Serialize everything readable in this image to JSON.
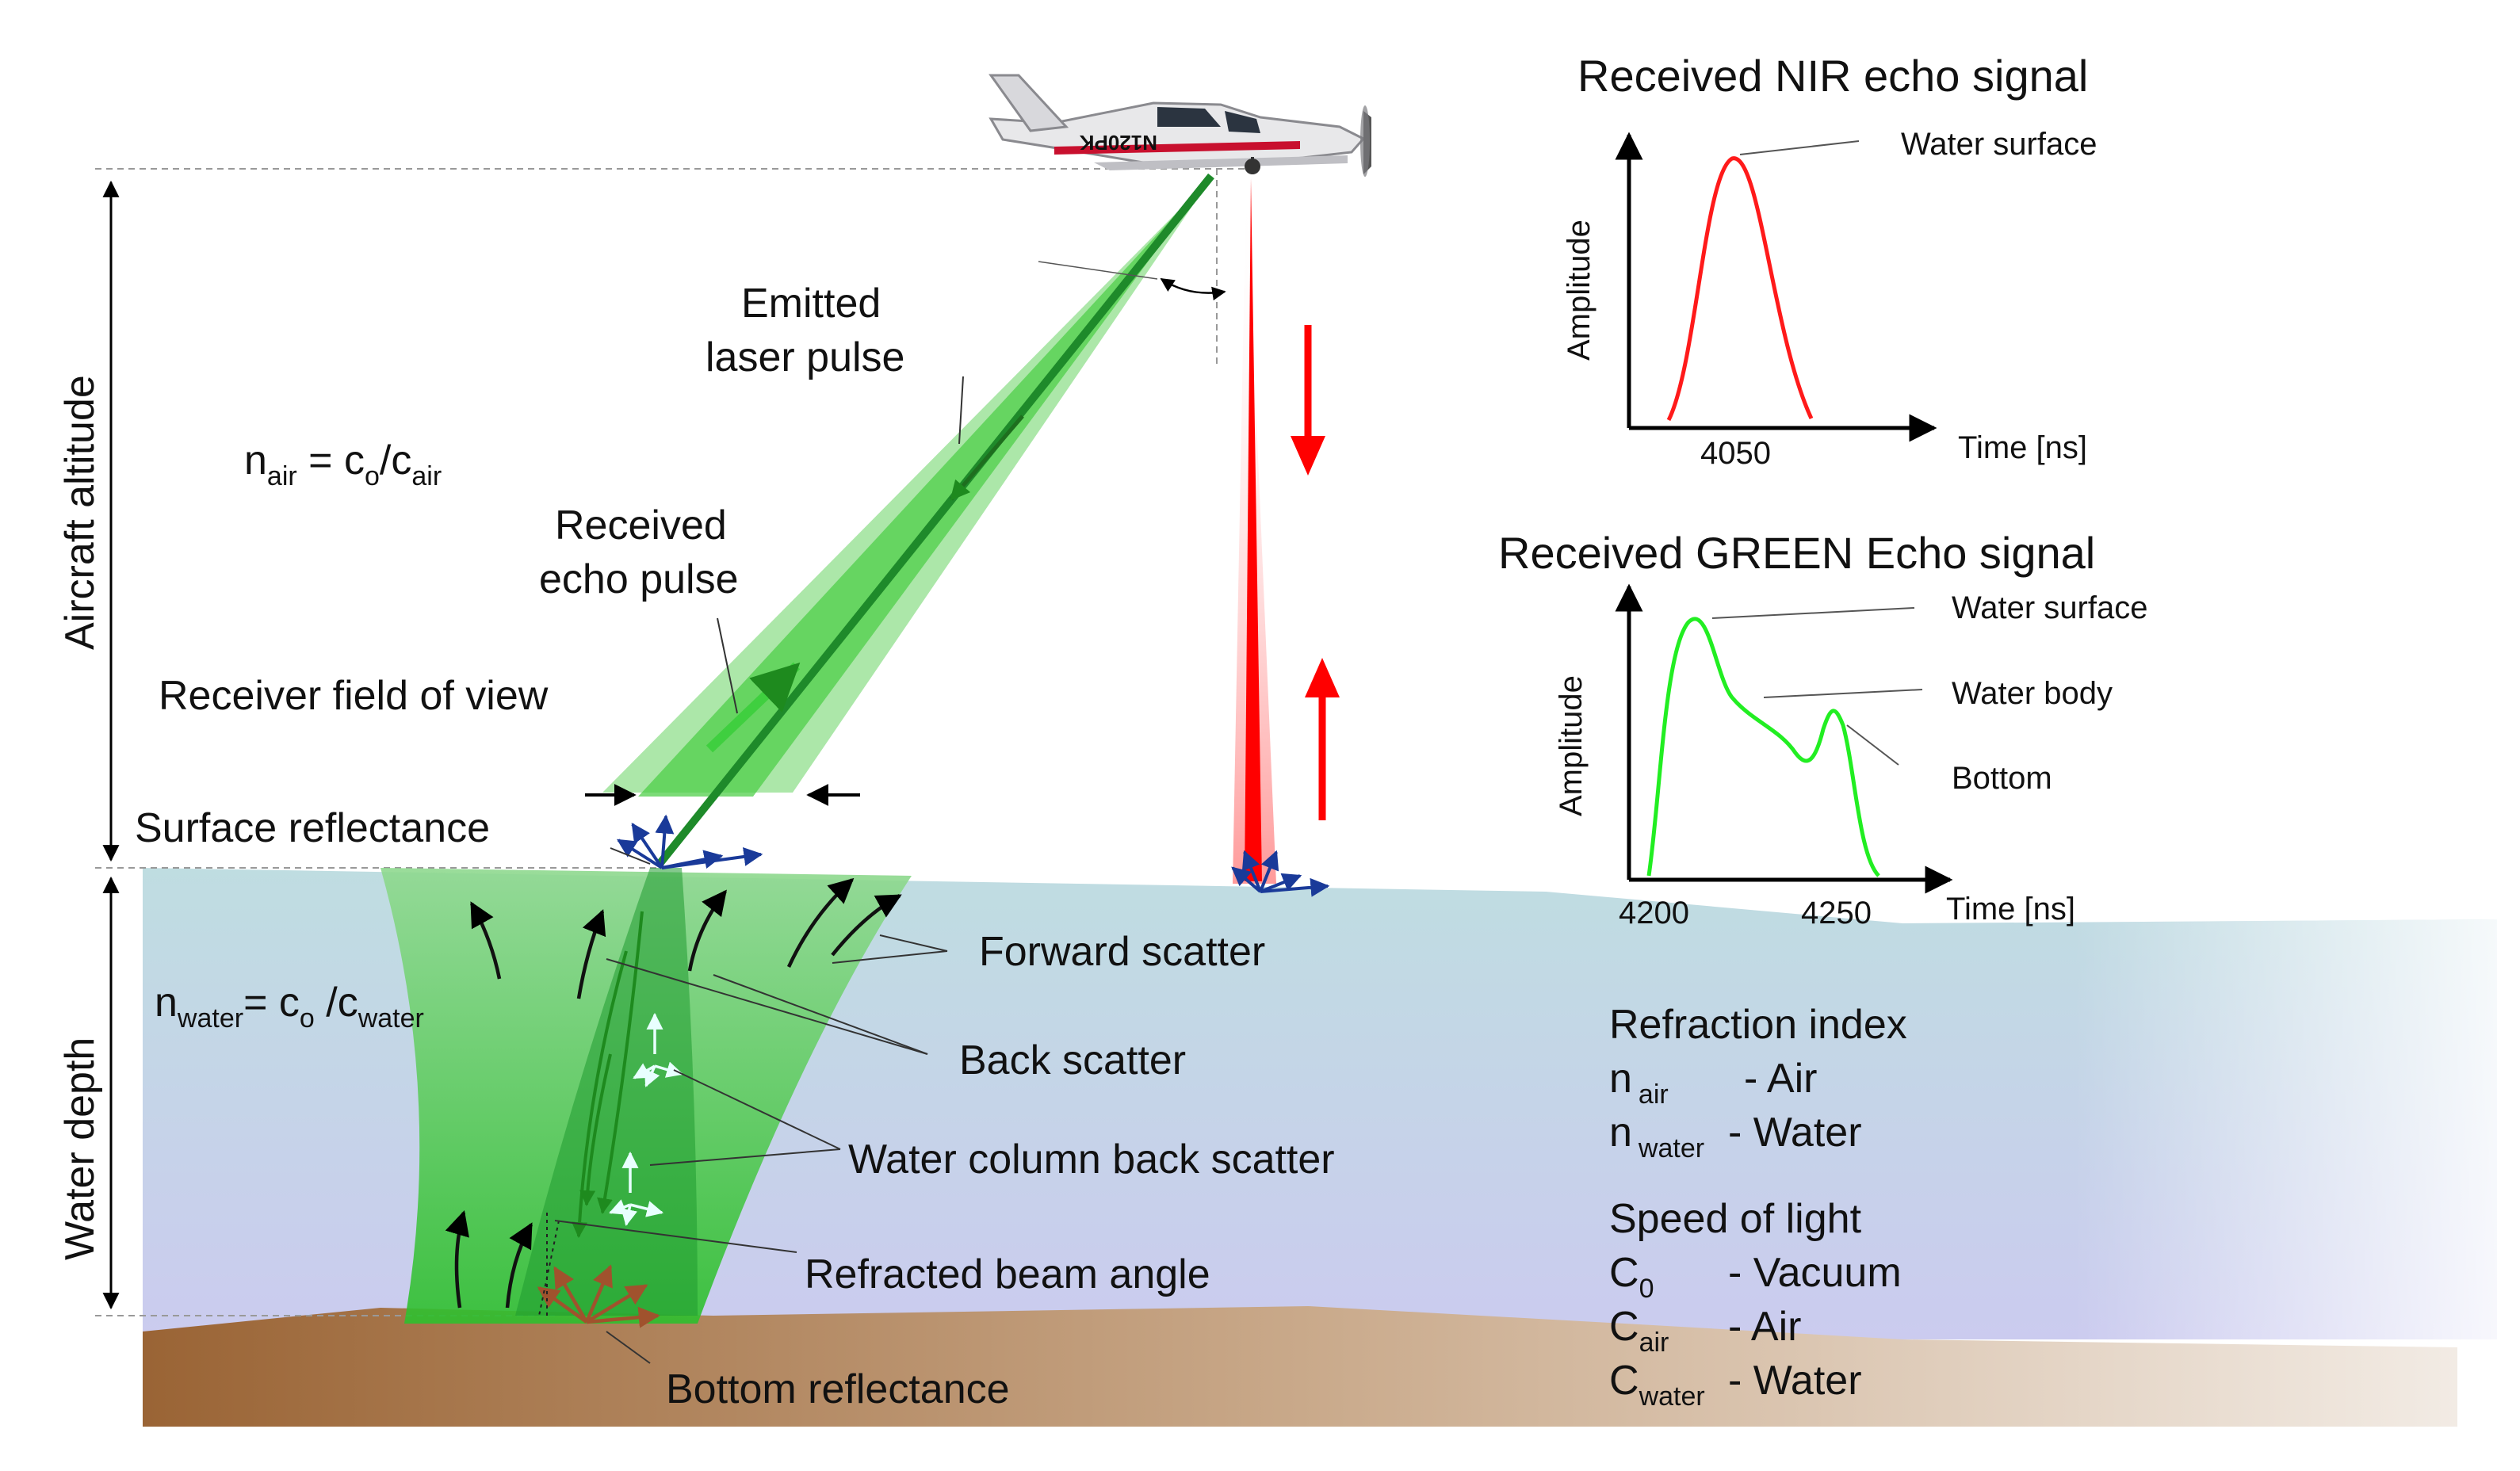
{
  "labels": {
    "aircraft_altitude": "Aircraft altitude",
    "water_depth": "Water depth",
    "emitted_1": "Emitted",
    "emitted_2": "laser pulse",
    "received_1": "Received",
    "received_2": "echo pulse",
    "receiver_fov": "Receiver field of view",
    "surface_reflectance": "Surface reflectance",
    "forward_scatter": "Forward scatter",
    "back_scatter": "Back scatter",
    "water_column_back_scatter": "Water column back scatter",
    "refracted_beam_angle": "Refracted beam angle",
    "bottom_reflectance": "Bottom reflectance"
  },
  "formulas": {
    "air": {
      "n": "n",
      "n_sub": "air",
      "eq": " = c",
      "c0_sub": "o",
      "slash": "/c",
      "c_sub": "air"
    },
    "water": {
      "n": "n",
      "n_sub": "water",
      "eq": "= c",
      "c0_sub": "o",
      "slash": " /c",
      "c_sub": "water"
    }
  },
  "aircraft_registration": "N120PK",
  "legend": {
    "refraction_title": "Refraction index",
    "rows_n": [
      {
        "sym": "n",
        "sub": "air",
        "desc": "- Air"
      },
      {
        "sym": "n",
        "sub": "water",
        "desc": "- Water"
      }
    ],
    "speed_title": "Speed of light",
    "rows_c": [
      {
        "sym": "C",
        "sub": "0",
        "desc": "- Vacuum"
      },
      {
        "sym": "C",
        "sub": "air",
        "desc": "- Air"
      },
      {
        "sym": "C",
        "sub": "water",
        "desc": "- Water"
      }
    ]
  },
  "nir_chart": {
    "title": "Received NIR echo signal",
    "ylabel": "Amplitude",
    "xlabel": "Time [ns]",
    "tick": "4050",
    "annotation": "Water surface",
    "color": "#ff1a1a"
  },
  "green_chart": {
    "title": "Received GREEN Echo signal",
    "ylabel": "Amplitude",
    "xlabel": "Time [ns]",
    "ticks": [
      "4200",
      "4250"
    ],
    "annotations": [
      "Water surface",
      "Water body",
      "Bottom"
    ],
    "color": "#22ee22"
  },
  "colors": {
    "laser_green": "#2bb52b",
    "laser_red": "#ff0000",
    "water_top": "#bcdce0",
    "water_bottom": "#c9c9ee",
    "seabed": "#a06a3a",
    "scatter_arrows": "#1a3a99"
  }
}
